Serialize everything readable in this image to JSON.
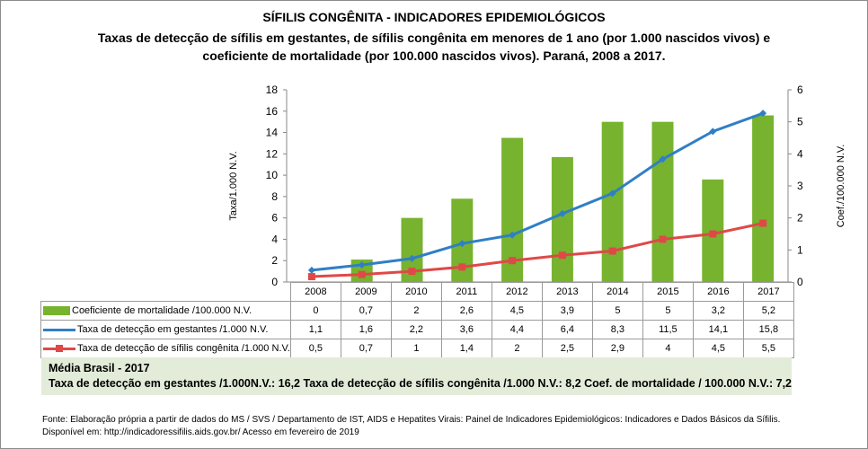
{
  "title": "SÍFILIS CONGÊNITA - INDICADORES EPIDEMIOLÓGICOS",
  "subtitle_line1": "Taxas de detecção de sífilis em gestantes, de sífilis congênita em menores de 1 ano (por 1.000 nascidos vivos) e",
  "subtitle_line2": "coeficiente de mortalidade (por 100.000 nascidos vivos). Paraná, 2008 a 2017.",
  "chart_data": {
    "type": "bar+line",
    "categories": [
      "2008",
      "2009",
      "2010",
      "2011",
      "2012",
      "2013",
      "2014",
      "2015",
      "2016",
      "2017"
    ],
    "ylabel_left": "Taxa/1.000 N.V.",
    "ylabel_right": "Coef./100.000 N.V.",
    "ylim_left": [
      0,
      18
    ],
    "yticks_left": [
      0,
      2,
      4,
      6,
      8,
      10,
      12,
      14,
      16,
      18
    ],
    "ylim_right": [
      0,
      6
    ],
    "yticks_right": [
      0,
      1,
      2,
      3,
      4,
      5,
      6
    ],
    "series": [
      {
        "name": "Coeficiente de mortalidade /100.000 N.V.",
        "type": "bar",
        "axis": "right",
        "color": "#77b32e",
        "values": [
          "0",
          "0,7",
          "2",
          "2,6",
          "4,5",
          "3,9",
          "5",
          "5",
          "3,2",
          "5,2"
        ]
      },
      {
        "name": "Taxa de detecção em gestantes /1.000 N.V.",
        "type": "line",
        "axis": "left",
        "color": "#2f7fc6",
        "values": [
          "1,1",
          "1,6",
          "2,2",
          "3,6",
          "4,4",
          "6,4",
          "8,3",
          "11,5",
          "14,1",
          "15,8"
        ]
      },
      {
        "name": "Taxa de detecção de sífilis congênita /1.000 N.V.",
        "type": "line",
        "axis": "left",
        "color": "#e04848",
        "values": [
          "0,5",
          "0,7",
          "1",
          "1,4",
          "2",
          "2,5",
          "2,9",
          "4",
          "4,5",
          "5,5"
        ]
      }
    ],
    "grid": false,
    "legend": "data-table"
  },
  "media": {
    "title": "Média Brasil  - 2017",
    "line": "Taxa  de detecção em gestantes /1.000N.V.: 16,2    Taxa  de detecção  de sífilis congênita  /1.000 N.V.: 8,2    Coef. de  mortalidade  / 100.000 N.V.: 7,2"
  },
  "footer": {
    "line1": "Fonte: Elaboração própria a partir de dados do MS / SVS / Departamento de IST, AIDS e Hepatites Virais: Painel de Indicadores Epidemiológicos: Indicadores e Dados Básicos da Sífilis.",
    "line2": "Disponível em: http://indicadoressifilis.aids.gov.br/    Acesso em fevereiro de 2019"
  }
}
